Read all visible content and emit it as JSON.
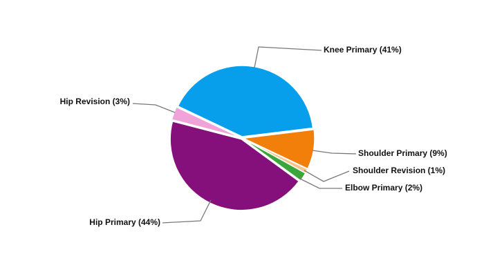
{
  "chart_data": {
    "type": "pie",
    "categories": [
      "Knee Primary (41%)",
      "Shoulder Primary (9%)",
      "Shoulder Revision (1%)",
      "Elbow Primary (2%)",
      "Hip Primary (44%)",
      "Hip Revision (3%)"
    ],
    "values": [
      41,
      9,
      1,
      2,
      44,
      3
    ],
    "colors": [
      "#079eec",
      "#f27f0a",
      "#f6c48e",
      "#3ba63b",
      "#85107c",
      "#efa3d8"
    ]
  }
}
